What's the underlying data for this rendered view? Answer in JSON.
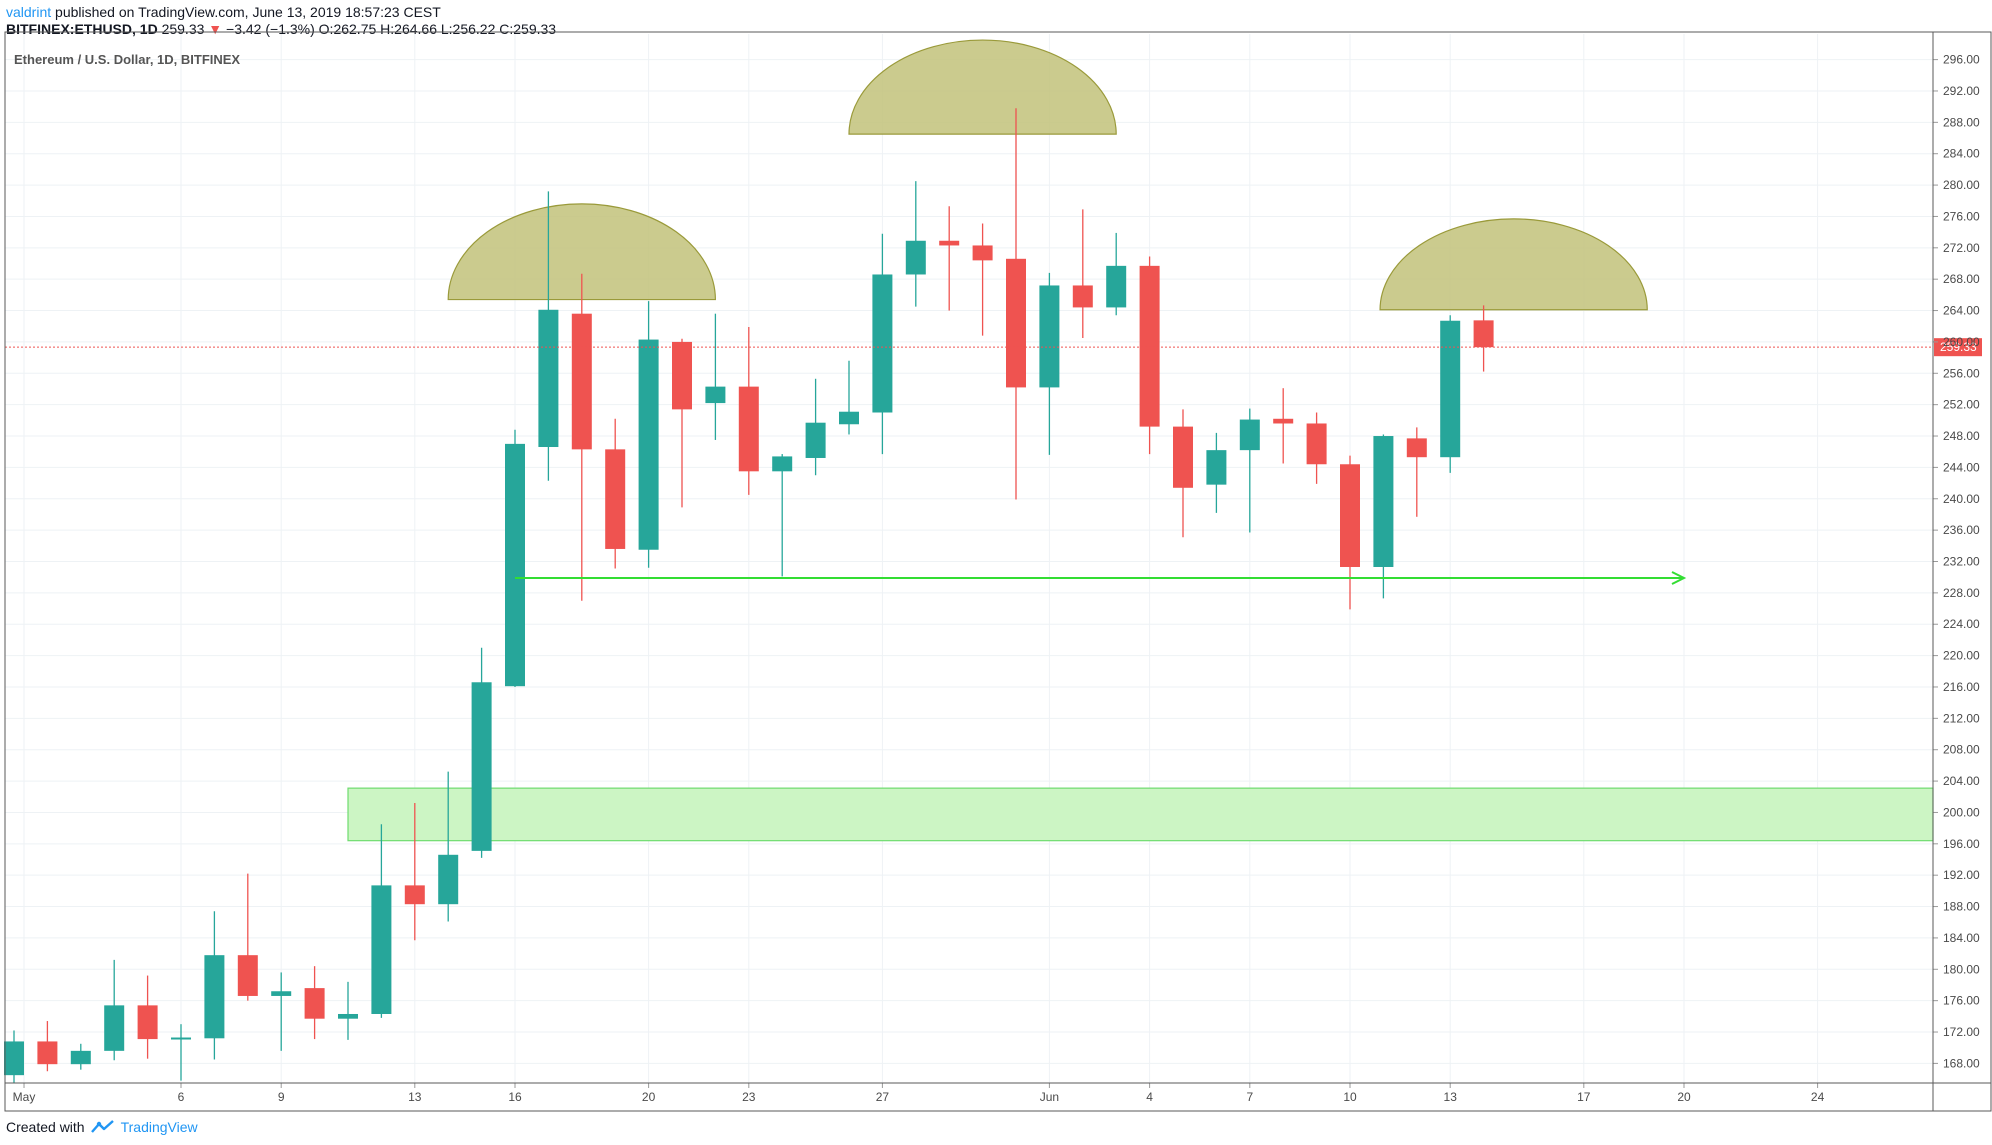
{
  "header": {
    "author": "valdrint",
    "published": "published on TradingView.com, June 13, 2019 18:57:23 CEST",
    "symbol": "BITFINEX:ETHUSD, 1D",
    "last": "259.33",
    "change_arrow": "▼",
    "change": "−3.42 (−1.3%)",
    "ohlc": "O:262.75 H:264.66 L:256.22 C:259.33"
  },
  "footer": {
    "created_with": "Created with",
    "brand": "TradingView"
  },
  "colors": {
    "up": "#26a69a",
    "down": "#ef5350",
    "grid": "#eef2f5",
    "zone_fill": "#ccf5c4",
    "zone_stroke": "#6fdc6f",
    "arrow": "#33dd33",
    "shoulder_fill": "#c2c27a",
    "shoulder_stroke": "#9a9a3a",
    "price_line": "#ef5350"
  },
  "chart_data": {
    "type": "candlestick",
    "title": "Ethereum / U.S. Dollar, 1D, BITFINEX",
    "ylim": [
      165.5,
      298.5
    ],
    "yticks": [
      "296.00",
      "292.00",
      "288.00",
      "284.00",
      "280.00",
      "276.00",
      "272.00",
      "268.00",
      "264.00",
      "260.00",
      "256.00",
      "252.00",
      "248.00",
      "244.00",
      "240.00",
      "236.00",
      "232.00",
      "228.00",
      "224.00",
      "220.00",
      "216.00",
      "212.00",
      "208.00",
      "204.00",
      "200.00",
      "196.00",
      "192.00",
      "188.00",
      "184.00",
      "180.00",
      "176.00",
      "172.00",
      "168.00"
    ],
    "xticks": [
      {
        "label": "May",
        "day": 0.3
      },
      {
        "label": "6",
        "day": 5
      },
      {
        "label": "9",
        "day": 8
      },
      {
        "label": "13",
        "day": 12
      },
      {
        "label": "16",
        "day": 15
      },
      {
        "label": "20",
        "day": 19
      },
      {
        "label": "23",
        "day": 22
      },
      {
        "label": "27",
        "day": 26
      },
      {
        "label": "Jun",
        "day": 31
      },
      {
        "label": "4",
        "day": 34
      },
      {
        "label": "7",
        "day": 37
      },
      {
        "label": "10",
        "day": 40
      },
      {
        "label": "13",
        "day": 43
      },
      {
        "label": "17",
        "day": 47
      },
      {
        "label": "20",
        "day": 50
      },
      {
        "label": "24",
        "day": 54
      }
    ],
    "candles": [
      {
        "date": "2019-04-30",
        "o": 166.5,
        "h": 172.2,
        "l": 165.5,
        "c": 170.8
      },
      {
        "date": "2019-05-01",
        "o": 170.8,
        "h": 173.4,
        "l": 167.0,
        "c": 167.9
      },
      {
        "date": "2019-05-02",
        "o": 167.9,
        "h": 170.5,
        "l": 167.2,
        "c": 169.6
      },
      {
        "date": "2019-05-03",
        "o": 169.6,
        "h": 181.2,
        "l": 168.4,
        "c": 175.4
      },
      {
        "date": "2019-05-04",
        "o": 175.4,
        "h": 179.2,
        "l": 168.6,
        "c": 171.1
      },
      {
        "date": "2019-05-05",
        "o": 171.1,
        "h": 173.0,
        "l": 165.8,
        "c": 171.3
      },
      {
        "date": "2019-05-06",
        "o": 171.2,
        "h": 187.4,
        "l": 168.5,
        "c": 181.8
      },
      {
        "date": "2019-05-07",
        "o": 181.8,
        "h": 192.2,
        "l": 176.0,
        "c": 176.6
      },
      {
        "date": "2019-05-08",
        "o": 176.6,
        "h": 179.6,
        "l": 169.6,
        "c": 177.2
      },
      {
        "date": "2019-05-09",
        "o": 177.6,
        "h": 180.4,
        "l": 171.1,
        "c": 173.7
      },
      {
        "date": "2019-05-10",
        "o": 173.7,
        "h": 178.4,
        "l": 171.0,
        "c": 174.3
      },
      {
        "date": "2019-05-11",
        "o": 174.3,
        "h": 198.5,
        "l": 173.8,
        "c": 190.7
      },
      {
        "date": "2019-05-12",
        "o": 190.7,
        "h": 201.2,
        "l": 183.7,
        "c": 188.3
      },
      {
        "date": "2019-05-13",
        "o": 188.3,
        "h": 205.2,
        "l": 186.1,
        "c": 194.6
      },
      {
        "date": "2019-05-14",
        "o": 195.1,
        "h": 221.0,
        "l": 194.2,
        "c": 216.6
      },
      {
        "date": "2019-05-15",
        "o": 216.1,
        "h": 248.8,
        "l": 216.0,
        "c": 247.0
      },
      {
        "date": "2019-05-16",
        "o": 246.6,
        "h": 279.2,
        "l": 242.3,
        "c": 264.1
      },
      {
        "date": "2019-05-17",
        "o": 263.6,
        "h": 268.7,
        "l": 227.0,
        "c": 246.3
      },
      {
        "date": "2019-05-18",
        "o": 246.3,
        "h": 250.2,
        "l": 231.1,
        "c": 233.6
      },
      {
        "date": "2019-05-19",
        "o": 233.5,
        "h": 265.2,
        "l": 231.2,
        "c": 260.3
      },
      {
        "date": "2019-05-20",
        "o": 260.0,
        "h": 260.4,
        "l": 238.9,
        "c": 251.4
      },
      {
        "date": "2019-05-21",
        "o": 252.2,
        "h": 263.6,
        "l": 247.5,
        "c": 254.3
      },
      {
        "date": "2019-05-22",
        "o": 254.3,
        "h": 261.9,
        "l": 240.5,
        "c": 243.5
      },
      {
        "date": "2019-05-23",
        "o": 243.5,
        "h": 245.7,
        "l": 230.1,
        "c": 245.4
      },
      {
        "date": "2019-05-24",
        "o": 245.2,
        "h": 255.3,
        "l": 243.0,
        "c": 249.7
      },
      {
        "date": "2019-05-25",
        "o": 249.5,
        "h": 257.6,
        "l": 248.2,
        "c": 251.1
      },
      {
        "date": "2019-05-26",
        "o": 251.0,
        "h": 273.8,
        "l": 245.7,
        "c": 268.6
      },
      {
        "date": "2019-05-27",
        "o": 268.6,
        "h": 280.5,
        "l": 264.5,
        "c": 272.9
      },
      {
        "date": "2019-05-28",
        "o": 272.9,
        "h": 277.3,
        "l": 264.0,
        "c": 272.3
      },
      {
        "date": "2019-05-29",
        "o": 272.3,
        "h": 275.1,
        "l": 260.8,
        "c": 270.4
      },
      {
        "date": "2019-05-30",
        "o": 270.6,
        "h": 289.8,
        "l": 239.9,
        "c": 254.2
      },
      {
        "date": "2019-05-31",
        "o": 254.2,
        "h": 268.8,
        "l": 245.6,
        "c": 267.2
      },
      {
        "date": "2019-06-01",
        "o": 267.2,
        "h": 276.9,
        "l": 260.5,
        "c": 264.4
      },
      {
        "date": "2019-06-02",
        "o": 264.4,
        "h": 273.9,
        "l": 263.4,
        "c": 269.7
      },
      {
        "date": "2019-06-03",
        "o": 269.7,
        "h": 270.9,
        "l": 245.7,
        "c": 249.2
      },
      {
        "date": "2019-06-04",
        "o": 249.2,
        "h": 251.4,
        "l": 235.1,
        "c": 241.4
      },
      {
        "date": "2019-06-05",
        "o": 241.8,
        "h": 248.4,
        "l": 238.2,
        "c": 246.2
      },
      {
        "date": "2019-06-06",
        "o": 246.2,
        "h": 251.5,
        "l": 235.7,
        "c": 250.1
      },
      {
        "date": "2019-06-07",
        "o": 250.2,
        "h": 254.1,
        "l": 244.5,
        "c": 249.6
      },
      {
        "date": "2019-06-08",
        "o": 249.6,
        "h": 251.0,
        "l": 241.9,
        "c": 244.4
      },
      {
        "date": "2019-06-09",
        "o": 244.4,
        "h": 245.5,
        "l": 225.9,
        "c": 231.3
      },
      {
        "date": "2019-06-10",
        "o": 231.3,
        "h": 248.2,
        "l": 227.3,
        "c": 248.0
      },
      {
        "date": "2019-06-11",
        "o": 247.7,
        "h": 249.1,
        "l": 237.7,
        "c": 245.3
      },
      {
        "date": "2019-06-12",
        "o": 245.3,
        "h": 263.4,
        "l": 243.3,
        "c": 262.7
      },
      {
        "date": "2019-06-13",
        "o": 262.75,
        "h": 264.66,
        "l": 256.22,
        "c": 259.33
      }
    ],
    "last_price": {
      "value": 259.33,
      "label": "259.33"
    },
    "annotations": {
      "support_zone": {
        "day_start": 10,
        "day_end": 60,
        "low": 196.4,
        "high": 203.1
      },
      "support_arrow": {
        "day_start": 15,
        "day_end": 50,
        "price": 229.9
      },
      "shoulders": [
        {
          "name": "left-shoulder",
          "day_start": 13,
          "day_end": 21,
          "base": 265.4,
          "peak": 277.6
        },
        {
          "name": "head",
          "day_start": 25,
          "day_end": 33,
          "base": 286.5,
          "peak": 298.5
        },
        {
          "name": "right-shoulder",
          "day_start": 40.9,
          "day_end": 48.9,
          "base": 264.1,
          "peak": 275.7
        }
      ]
    }
  }
}
